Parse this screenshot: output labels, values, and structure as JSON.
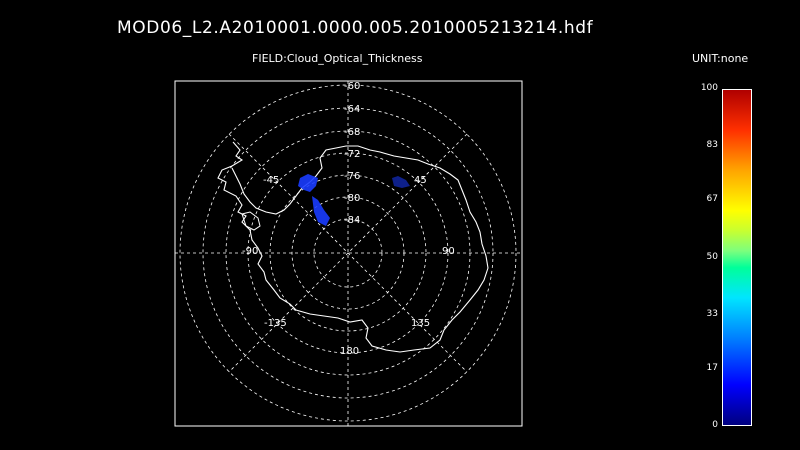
{
  "title": "MOD06_L2.A2010001.0000.005.2010005213214.hdf",
  "field": "FIELD:Cloud_Optical_Thickness",
  "unit": "UNIT:none",
  "map": {
    "projection": "polar-stereographic-south",
    "latitude_labels": [
      "-60",
      "-64",
      "-68",
      "-72",
      "-76",
      "-80",
      "-84"
    ],
    "longitude_labels": [
      "-45",
      "45",
      "-90",
      "90",
      "-135",
      "135",
      "180"
    ],
    "grid_color": "#ffffff",
    "coastline_color": "#ffffff",
    "data_color": "#1a3cff"
  },
  "colorbar": {
    "ticks": [
      "100",
      "83",
      "67",
      "50",
      "33",
      "17",
      "0"
    ],
    "tick_values": [
      100,
      83,
      67,
      50,
      33,
      17,
      0
    ],
    "min": 0,
    "max": 100
  }
}
